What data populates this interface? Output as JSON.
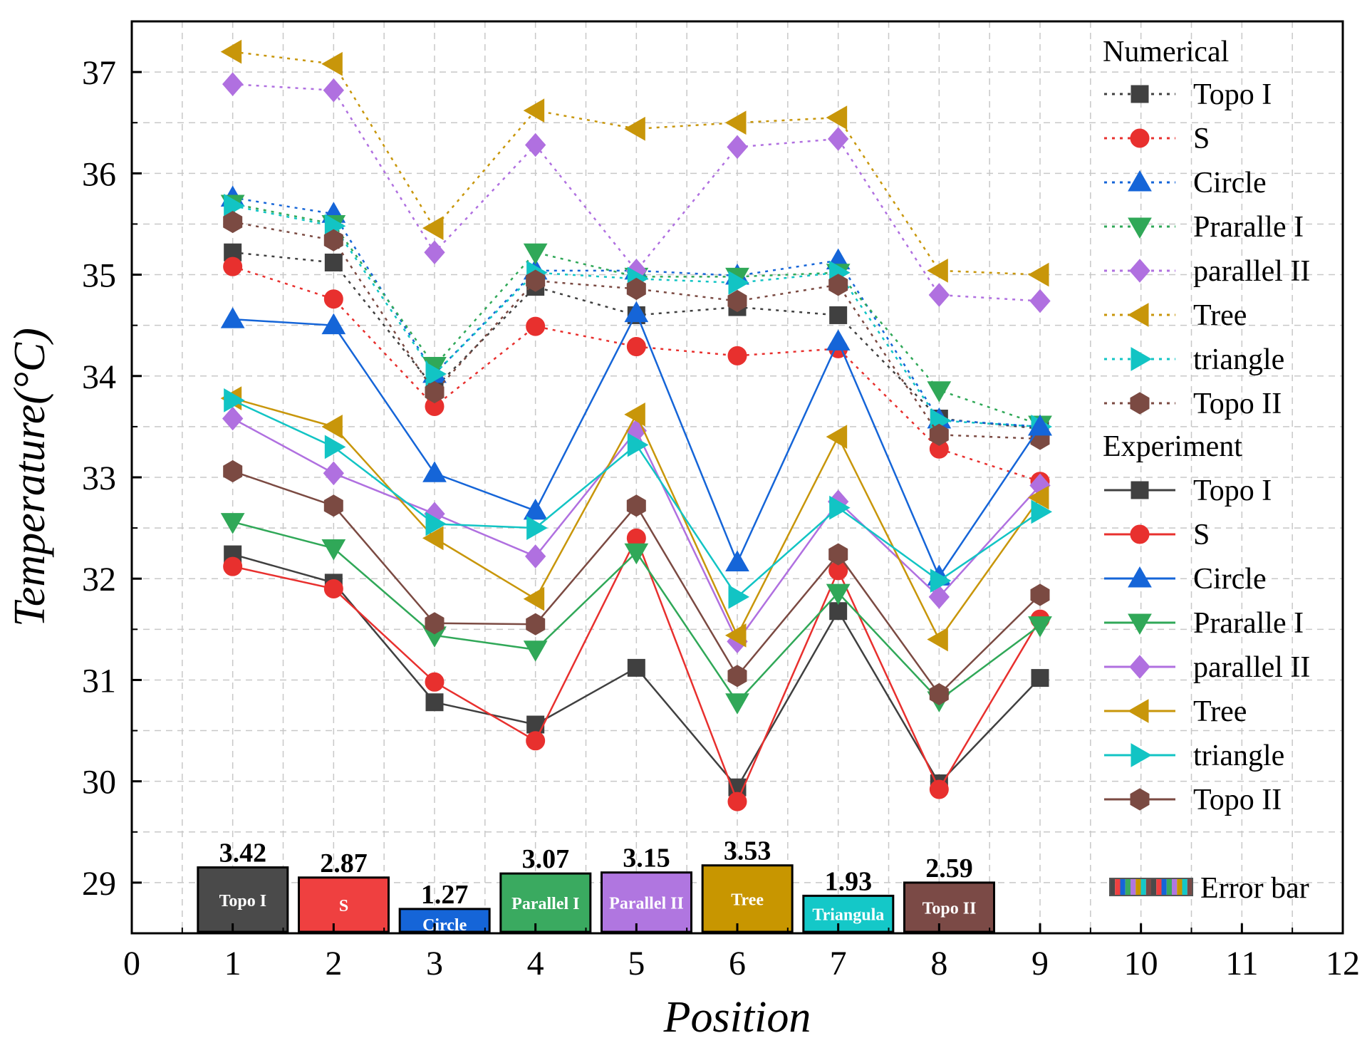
{
  "chart_data": {
    "type": "line",
    "xlabel": "Position",
    "ylabel": "Temperature(°C)",
    "xlim": [
      0,
      12
    ],
    "ylim": [
      28.5,
      37.5
    ],
    "x_ticks": [
      0,
      1,
      2,
      3,
      4,
      5,
      6,
      7,
      8,
      9,
      10,
      11,
      12
    ],
    "y_ticks": [
      29,
      30,
      31,
      32,
      33,
      34,
      35,
      36,
      37
    ],
    "x_tick_labels": [
      "0",
      "1",
      "2",
      "3",
      "4",
      "5",
      "6",
      "7",
      "8",
      "9",
      "10",
      "11",
      "12"
    ],
    "y_tick_labels": [
      "29",
      "30",
      "31",
      "32",
      "33",
      "34",
      "35",
      "36",
      "37"
    ],
    "grid": true,
    "x": [
      1,
      2,
      3,
      4,
      5,
      6,
      7,
      8,
      9
    ],
    "legend_numerical_title": "Numerical",
    "legend_experiment_title": "Experiment",
    "numerical_series": [
      {
        "name": "Topo I",
        "color": "#404040",
        "marker": "square",
        "values": [
          35.22,
          35.12,
          33.88,
          34.88,
          34.6,
          34.68,
          34.6,
          33.58,
          33.48
        ]
      },
      {
        "name": "S",
        "color": "#e8302e",
        "marker": "circle",
        "values": [
          35.08,
          34.76,
          33.7,
          34.49,
          34.29,
          34.2,
          34.27,
          33.28,
          32.96
        ]
      },
      {
        "name": "Circle",
        "color": "#1565d8",
        "marker": "triangle-up",
        "values": [
          35.76,
          35.6,
          34.02,
          35.04,
          35.04,
          34.99,
          35.14,
          33.57,
          33.5
        ]
      },
      {
        "name": "Praralle I",
        "color": "#30a858",
        "marker": "triangle-down",
        "values": [
          35.7,
          35.5,
          34.1,
          35.22,
          34.98,
          34.98,
          35.02,
          33.86,
          33.52
        ]
      },
      {
        "name": "parallel II",
        "color": "#b070e0",
        "marker": "diamond",
        "values": [
          36.88,
          36.82,
          35.22,
          36.28,
          35.04,
          36.26,
          36.34,
          34.8,
          34.74
        ]
      },
      {
        "name": "Tree",
        "color": "#c8960a",
        "marker": "triangle-left",
        "values": [
          37.2,
          37.08,
          35.46,
          36.62,
          36.44,
          36.5,
          36.55,
          35.04,
          35.0
        ]
      },
      {
        "name": "triangle",
        "color": "#12c4c4",
        "marker": "triangle-right",
        "values": [
          35.68,
          35.48,
          34.02,
          35.02,
          34.96,
          34.92,
          35.02,
          33.56,
          33.5
        ]
      },
      {
        "name": "Topo II",
        "color": "#7b4a42",
        "marker": "hexagon",
        "values": [
          35.52,
          35.34,
          33.84,
          34.94,
          34.86,
          34.74,
          34.9,
          33.42,
          33.38
        ]
      }
    ],
    "experiment_series": [
      {
        "name": "Topo I",
        "color": "#404040",
        "marker": "square",
        "values": [
          32.24,
          31.96,
          30.78,
          30.56,
          31.12,
          29.94,
          31.68,
          29.98,
          31.02
        ]
      },
      {
        "name": "S",
        "color": "#e8302e",
        "marker": "circle",
        "values": [
          32.12,
          31.9,
          30.98,
          30.4,
          32.4,
          29.8,
          32.08,
          29.92,
          31.6
        ]
      },
      {
        "name": "Circle",
        "color": "#1565d8",
        "marker": "triangle-up",
        "values": [
          34.56,
          34.5,
          33.04,
          32.67,
          34.62,
          32.16,
          34.34,
          32.02,
          33.5
        ]
      },
      {
        "name": "Praralle I",
        "color": "#30a858",
        "marker": "triangle-down",
        "values": [
          32.56,
          32.3,
          31.44,
          31.3,
          32.26,
          30.78,
          31.86,
          30.8,
          31.54
        ]
      },
      {
        "name": "parallel II",
        "color": "#b070e0",
        "marker": "diamond",
        "values": [
          33.58,
          33.04,
          32.64,
          32.22,
          33.46,
          31.38,
          32.76,
          31.82,
          32.92
        ]
      },
      {
        "name": "Tree",
        "color": "#c8960a",
        "marker": "triangle-left",
        "values": [
          33.78,
          33.5,
          32.4,
          31.8,
          33.62,
          31.44,
          33.4,
          31.4,
          32.8
        ]
      },
      {
        "name": "triangle",
        "color": "#12c4c4",
        "marker": "triangle-right",
        "values": [
          33.76,
          33.3,
          32.54,
          32.5,
          33.32,
          31.82,
          32.7,
          31.98,
          32.66
        ]
      },
      {
        "name": "Topo II",
        "color": "#7b4a42",
        "marker": "hexagon",
        "values": [
          33.06,
          32.72,
          31.56,
          31.55,
          32.72,
          31.04,
          32.24,
          30.86,
          31.84
        ]
      }
    ],
    "error_bars": {
      "legend_label": "Error bar",
      "baseline": 28.5,
      "items": [
        {
          "x": 1,
          "label": "Topo I",
          "value": "3.42",
          "top": 29.15,
          "color": "#4a4a4a"
        },
        {
          "x": 2,
          "label": "S",
          "value": "2.87",
          "top": 29.05,
          "color": "#ef4040"
        },
        {
          "x": 3,
          "label": "Circle",
          "value": "1.27",
          "top": 28.74,
          "color": "#1565d8"
        },
        {
          "x": 4,
          "label": "Parallel I",
          "value": "3.07",
          "top": 29.09,
          "color": "#3aaa60"
        },
        {
          "x": 5,
          "label": "Parallel II",
          "value": "3.15",
          "top": 29.1,
          "color": "#b076e0"
        },
        {
          "x": 6,
          "label": "Tree",
          "value": "3.53",
          "top": 29.17,
          "color": "#c89600"
        },
        {
          "x": 7,
          "label": "Triangula",
          "value": "1.93",
          "top": 28.87,
          "color": "#14c8c8"
        },
        {
          "x": 8,
          "label": "Topo II",
          "value": "2.59",
          "top": 29.0,
          "color": "#7b4a46"
        }
      ]
    }
  }
}
